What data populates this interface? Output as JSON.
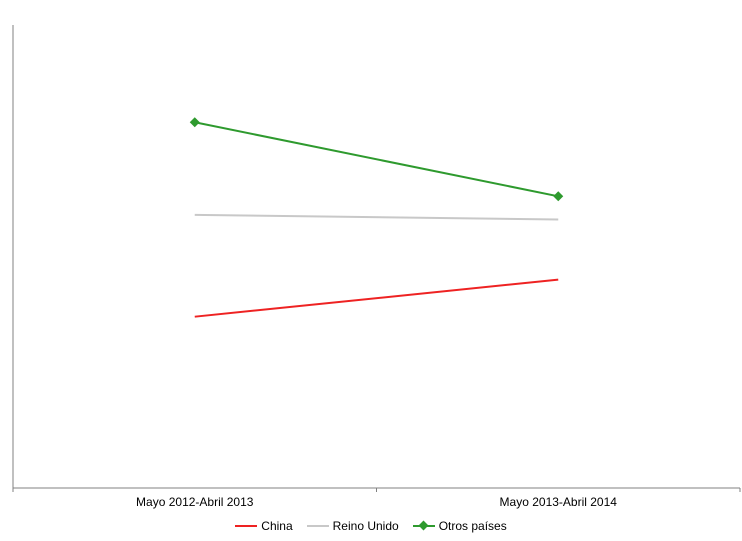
{
  "chart_data": {
    "type": "line",
    "categories": [
      "Mayo 2012-Abril 2013",
      "Mayo 2013-Abril 2014"
    ],
    "series": [
      {
        "name": "China",
        "values": [
          0.37,
          0.45
        ],
        "color": "#ee2222",
        "marker": false
      },
      {
        "name": "Reino Unido",
        "values": [
          0.59,
          0.58
        ],
        "color": "#c8c8c8",
        "marker": false
      },
      {
        "name": "Otros países",
        "values": [
          0.79,
          0.63
        ],
        "color": "#2e9a2e",
        "marker": true
      }
    ],
    "ylim": [
      0,
      1
    ],
    "grid": false,
    "legend_position": "bottom"
  }
}
